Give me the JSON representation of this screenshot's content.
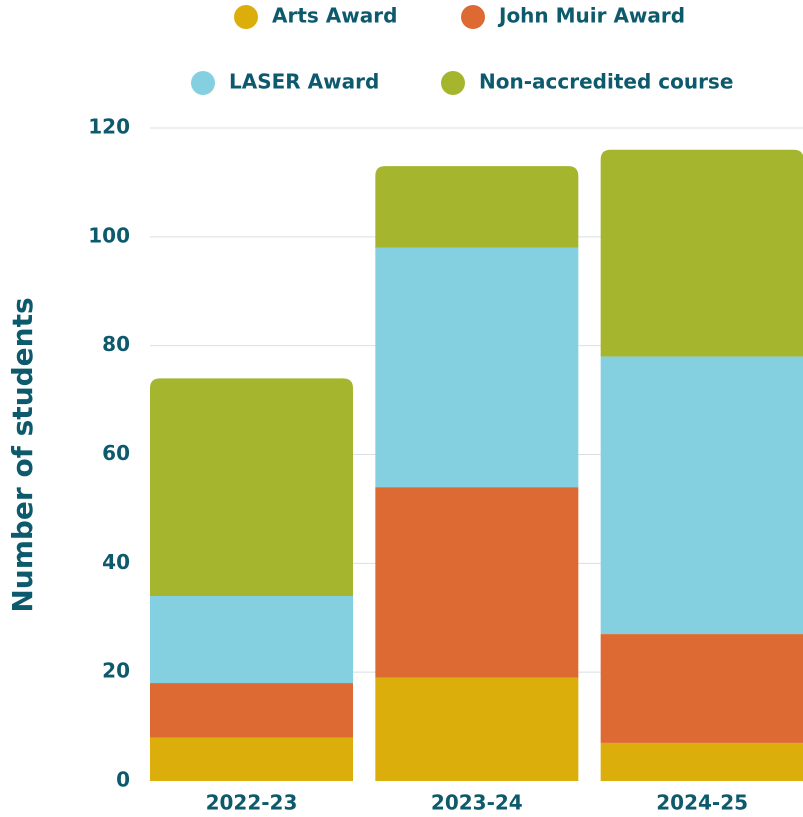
{
  "chart_data": {
    "type": "stacked_bar",
    "y_label": "Number of students",
    "categories": [
      "2022-23",
      "2023-24",
      "2024-25"
    ],
    "series": [
      {
        "name": "Arts Award",
        "color": "#dcae0c",
        "values": [
          8,
          19,
          7
        ]
      },
      {
        "name": "John Muir Award",
        "color": "#dd6a33",
        "values": [
          10,
          35,
          20
        ]
      },
      {
        "name": "LASER Award",
        "color": "#85d0e0",
        "values": [
          16,
          44,
          51
        ]
      },
      {
        "name": "Non-accredited course",
        "color": "#a5b52e",
        "values": [
          40,
          15,
          38
        ]
      }
    ],
    "ylim": [
      0,
      120
    ],
    "yticks": [
      0,
      20,
      40,
      60,
      80,
      100,
      120
    ],
    "grid": true
  }
}
